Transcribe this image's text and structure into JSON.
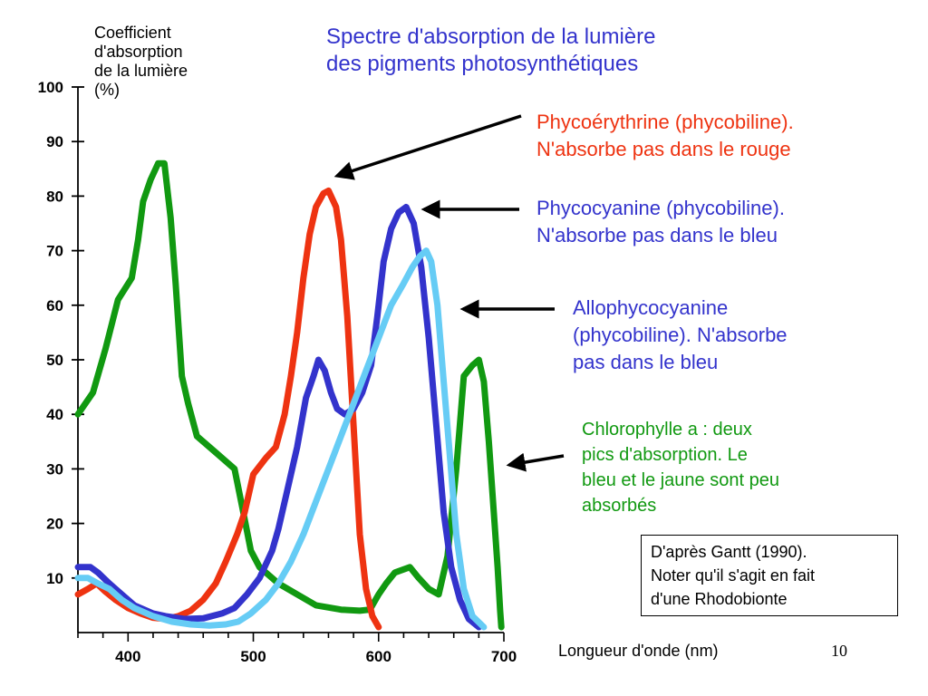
{
  "slide": {
    "title_lines": [
      "Spectre d'absorption de la lumière",
      "des pigments photosynthétiques"
    ],
    "slide_number": "10"
  },
  "chart_data": {
    "type": "line",
    "title": "Spectre d'absorption de la lumière des pigments photosynthétiques",
    "ylabel_lines": [
      "Coefficient",
      "d'absorption",
      "de la lumière",
      "(%)"
    ],
    "xlabel": "Longueur d'onde (nm)",
    "xlim": [
      360,
      700
    ],
    "ylim": [
      0,
      100
    ],
    "xticks": [
      400,
      500,
      600,
      700
    ],
    "yticks": [
      10,
      20,
      30,
      40,
      50,
      60,
      70,
      80,
      90,
      100
    ],
    "grid": false,
    "series": [
      {
        "name": "Chlorophylle a",
        "color": "#119911",
        "points": [
          [
            360,
            40
          ],
          [
            372,
            44
          ],
          [
            382,
            52
          ],
          [
            392,
            61
          ],
          [
            403,
            65
          ],
          [
            408,
            72
          ],
          [
            412,
            79
          ],
          [
            418,
            83
          ],
          [
            424,
            86
          ],
          [
            429,
            86
          ],
          [
            434,
            76
          ],
          [
            438,
            64
          ],
          [
            443,
            47
          ],
          [
            448,
            42
          ],
          [
            455,
            36
          ],
          [
            470,
            33
          ],
          [
            485,
            30
          ],
          [
            492,
            22
          ],
          [
            498,
            15
          ],
          [
            505,
            12
          ],
          [
            520,
            9
          ],
          [
            535,
            7
          ],
          [
            550,
            5
          ],
          [
            560,
            4.6
          ],
          [
            570,
            4.2
          ],
          [
            585,
            4
          ],
          [
            593,
            4.2
          ],
          [
            600,
            7
          ],
          [
            606,
            9
          ],
          [
            613,
            11
          ],
          [
            625,
            12
          ],
          [
            632,
            10
          ],
          [
            640,
            8
          ],
          [
            648,
            7
          ],
          [
            655,
            14
          ],
          [
            662,
            30
          ],
          [
            668,
            47
          ],
          [
            675,
            49
          ],
          [
            680,
            50
          ],
          [
            684,
            46
          ],
          [
            688,
            35
          ],
          [
            692,
            22
          ],
          [
            695,
            12
          ],
          [
            697,
            4
          ],
          [
            698,
            1
          ]
        ]
      },
      {
        "name": "Phycoérythrine",
        "color": "#ee3311",
        "points": [
          [
            360,
            7
          ],
          [
            368,
            8
          ],
          [
            375,
            9
          ],
          [
            382,
            7.5
          ],
          [
            390,
            6
          ],
          [
            400,
            4.5
          ],
          [
            410,
            3.5
          ],
          [
            420,
            2.7
          ],
          [
            430,
            2.5
          ],
          [
            440,
            3
          ],
          [
            450,
            4
          ],
          [
            460,
            6
          ],
          [
            470,
            9
          ],
          [
            478,
            13
          ],
          [
            487,
            18
          ],
          [
            493,
            22
          ],
          [
            500,
            29
          ],
          [
            510,
            32
          ],
          [
            518,
            34
          ],
          [
            525,
            40
          ],
          [
            530,
            47
          ],
          [
            535,
            55
          ],
          [
            540,
            65
          ],
          [
            545,
            73
          ],
          [
            550,
            78
          ],
          [
            556,
            80.5
          ],
          [
            560,
            81
          ],
          [
            566,
            78
          ],
          [
            570,
            72
          ],
          [
            575,
            58
          ],
          [
            580,
            38
          ],
          [
            585,
            18
          ],
          [
            590,
            8
          ],
          [
            595,
            3
          ],
          [
            600,
            1
          ]
        ]
      },
      {
        "name": "Phycocyanine",
        "color": "#3333cc",
        "points": [
          [
            360,
            12
          ],
          [
            370,
            12
          ],
          [
            376,
            11
          ],
          [
            385,
            9
          ],
          [
            395,
            7
          ],
          [
            405,
            5
          ],
          [
            420,
            3.5
          ],
          [
            430,
            3
          ],
          [
            445,
            2.5
          ],
          [
            460,
            2.6
          ],
          [
            475,
            3.5
          ],
          [
            485,
            4.5
          ],
          [
            495,
            7
          ],
          [
            505,
            10
          ],
          [
            515,
            15
          ],
          [
            520,
            19
          ],
          [
            527,
            26
          ],
          [
            535,
            34
          ],
          [
            542,
            43
          ],
          [
            548,
            47
          ],
          [
            552,
            50
          ],
          [
            557,
            48
          ],
          [
            562,
            44
          ],
          [
            567,
            41
          ],
          [
            573,
            40
          ],
          [
            580,
            41
          ],
          [
            587,
            44
          ],
          [
            594,
            49
          ],
          [
            599,
            58
          ],
          [
            604,
            68
          ],
          [
            610,
            74
          ],
          [
            616,
            77
          ],
          [
            622,
            78
          ],
          [
            628,
            75
          ],
          [
            634,
            67
          ],
          [
            640,
            54
          ],
          [
            646,
            38
          ],
          [
            652,
            22
          ],
          [
            658,
            12
          ],
          [
            665,
            6
          ],
          [
            672,
            2.5
          ],
          [
            680,
            1
          ]
        ]
      },
      {
        "name": "Allophycocyanine",
        "color": "#66ccf5",
        "points": [
          [
            360,
            10
          ],
          [
            368,
            10
          ],
          [
            376,
            9
          ],
          [
            385,
            8
          ],
          [
            395,
            6
          ],
          [
            405,
            4.5
          ],
          [
            420,
            3
          ],
          [
            435,
            2
          ],
          [
            450,
            1.5
          ],
          [
            465,
            1.3
          ],
          [
            478,
            1.5
          ],
          [
            488,
            2
          ],
          [
            498,
            3.5
          ],
          [
            510,
            6
          ],
          [
            520,
            9
          ],
          [
            530,
            13
          ],
          [
            540,
            18
          ],
          [
            550,
            24
          ],
          [
            560,
            30
          ],
          [
            570,
            36
          ],
          [
            580,
            42
          ],
          [
            590,
            48
          ],
          [
            600,
            54
          ],
          [
            610,
            60
          ],
          [
            620,
            64
          ],
          [
            627,
            67
          ],
          [
            633,
            69
          ],
          [
            638,
            70
          ],
          [
            642,
            68
          ],
          [
            647,
            60
          ],
          [
            652,
            46
          ],
          [
            657,
            32
          ],
          [
            662,
            18
          ],
          [
            668,
            8
          ],
          [
            675,
            3
          ],
          [
            684,
            1
          ]
        ]
      }
    ],
    "annotations": [
      {
        "target": "Phycoérythrine",
        "color": "#ee3311",
        "lines": [
          "Phycoérythrine (phycobiline).",
          "N'absorbe pas dans le rouge"
        ]
      },
      {
        "target": "Phycocyanine",
        "color": "#3333cc",
        "lines": [
          "Phycocyanine (phycobiline).",
          "N'absorbe pas dans le bleu"
        ]
      },
      {
        "target": "Allophycocyanine",
        "color": "#3333cc",
        "lines": [
          "Allophycocyanine",
          "(phycobiline). N'absorbe",
          "pas dans le bleu"
        ]
      },
      {
        "target": "Chlorophylle a",
        "color": "#119911",
        "lines": [
          "Chlorophylle a : deux",
          "pics d'absorption. Le",
          "bleu et le jaune sont peu",
          "absorbés"
        ]
      }
    ]
  },
  "source_box": {
    "lines": [
      "D'après Gantt (1990).",
      "Noter qu'il s'agit en fait",
      "d'une Rhodobionte"
    ]
  }
}
